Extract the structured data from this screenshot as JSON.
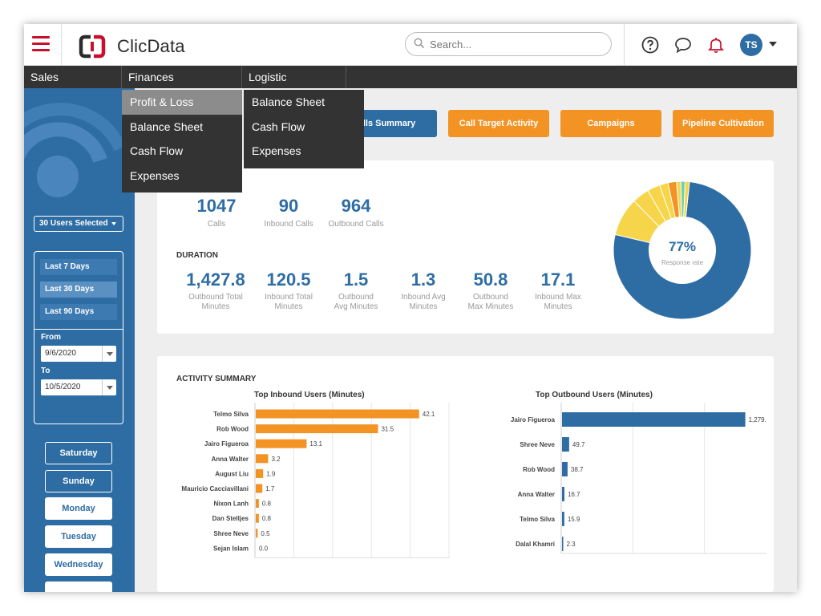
{
  "app": {
    "name": "ClicData"
  },
  "search": {
    "placeholder": "Search..."
  },
  "user": {
    "initials": "TS"
  },
  "nav": {
    "items": [
      "Sales",
      "Finances",
      "Logistic"
    ]
  },
  "finances_menu": {
    "items": [
      "Profit & Loss",
      "Balance Sheet",
      "Cash Flow",
      "Expenses"
    ],
    "active": "Profit & Loss"
  },
  "logistic_menu": {
    "items": [
      "Balance Sheet",
      "Cash Flow",
      "Expenses"
    ]
  },
  "sidebar": {
    "users_selected": "30 Users Selected",
    "ranges": [
      "Last 7 Days",
      "Last 30 Days",
      "Last 90 Days"
    ],
    "selected_range": "Last 30 Days",
    "from_label": "From",
    "from_value": "9/6/2020",
    "to_label": "To",
    "to_value": "10/5/2020",
    "days": [
      "Saturday",
      "Sunday",
      "Monday",
      "Tuesday",
      "Wednesday"
    ]
  },
  "tabs": [
    "Calls Summary",
    "Call Target Activity",
    "Campaigns",
    "Pipeline Cultivation"
  ],
  "tab_visible_labels": {
    "calls_summary": "alls Summary"
  },
  "kpis": {
    "top": [
      {
        "value": "1047",
        "label": "Calls"
      },
      {
        "value": "90",
        "label": "Inbound Calls"
      },
      {
        "value": "964",
        "label": "Outbound Calls"
      }
    ],
    "duration_title": "DURATION",
    "duration": [
      {
        "value": "1,427.8",
        "label1": "Outbound Total",
        "label2": "Minutes"
      },
      {
        "value": "120.5",
        "label1": "Inbound Total",
        "label2": "Minutes"
      },
      {
        "value": "1.5",
        "label1": "Outbound",
        "label2": "Avg Minutes"
      },
      {
        "value": "1.3",
        "label1": "Inbound Avg",
        "label2": "Minutes"
      },
      {
        "value": "50.8",
        "label1": "Outbound",
        "label2": "Max Minutes"
      },
      {
        "value": "17.1",
        "label1": "Inbound Max",
        "label2": "Minutes"
      }
    ]
  },
  "donut": {
    "center_value": "77%",
    "center_label": "Response rate"
  },
  "activity": {
    "title": "ACTIVITY SUMMARY"
  },
  "chart_data": [
    {
      "type": "pie",
      "title": "Response rate",
      "center_label": "77%",
      "values": [
        77,
        9,
        4,
        3,
        2,
        2,
        1,
        1,
        1
      ],
      "colors": [
        "#2e6da4",
        "#f6d54a",
        "#f6d54a",
        "#f6d54a",
        "#f6d54a",
        "#f39324",
        "#f6d54a",
        "#6fd0b0",
        "#f6d54a"
      ]
    },
    {
      "type": "bar",
      "orientation": "horizontal",
      "title": "Top Inbound Users (Minutes)",
      "categories": [
        "Telmo Silva",
        "Rob Wood",
        "Jairo Figueroa",
        "Anna Walter",
        "August Liu",
        "Mauricio Cacciavillani",
        "Nixon Lanh",
        "Dan Stelljes",
        "Shree Neve",
        "Sejan Islam"
      ],
      "values": [
        42.1,
        31.5,
        13.1,
        3.2,
        1.9,
        1.7,
        0.8,
        0.8,
        0.5,
        0.0
      ],
      "labels": [
        "42.1",
        "31.5",
        "13.1",
        "3.2",
        "1.9",
        "1.7",
        "0.8",
        "0.8",
        "0.5",
        "0.0"
      ],
      "xlim": [
        0,
        50
      ],
      "color": "#f39324"
    },
    {
      "type": "bar",
      "orientation": "horizontal",
      "title": "Top Outbound Users (Minutes)",
      "categories": [
        "Jairo Figueroa",
        "Shree Neve",
        "Rob Wood",
        "Anna Walter",
        "Telmo Silva",
        "Dalal Khamri"
      ],
      "values": [
        1279.5,
        49.7,
        38.7,
        16.7,
        15.9,
        2.3
      ],
      "labels": [
        "1,279.5",
        "49.7",
        "38.7",
        "16.7",
        "15.9",
        "2.3"
      ],
      "xlim": [
        0,
        1500
      ],
      "color": "#2e6da4"
    }
  ]
}
